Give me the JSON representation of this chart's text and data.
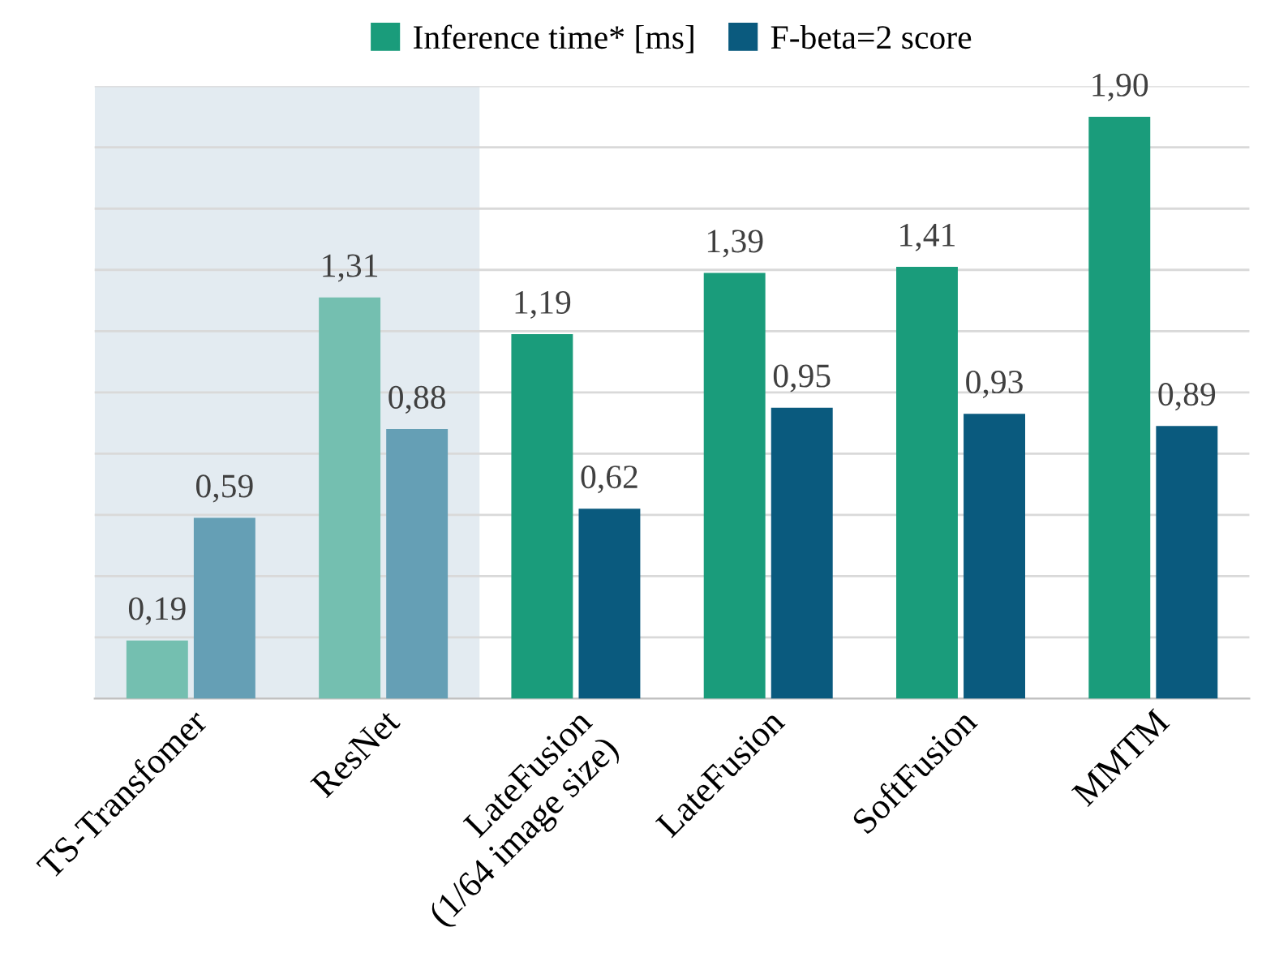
{
  "chart_data": {
    "type": "bar",
    "categories": [
      "TS-Transfomer",
      "ResNet",
      "LateFusion\n(1/64 image size)",
      "LateFusion",
      "SoftFusion",
      "MMTM"
    ],
    "series": [
      {
        "name": "Inference time* [ms]",
        "color": "#1a9c7b",
        "colors": [
          "#74bfb0",
          "#74bfb0",
          "#1a9c7b",
          "#1a9c7b",
          "#1a9c7b",
          "#1a9c7b"
        ],
        "values": [
          0.19,
          1.31,
          1.19,
          1.39,
          1.41,
          1.9
        ],
        "value_labels": [
          "0,19",
          "1,31",
          "1,19",
          "1,39",
          "1,41",
          "1,90"
        ]
      },
      {
        "name": "F-beta=2 score",
        "color": "#0a5a7e",
        "colors": [
          "#659fb5",
          "#659fb5",
          "#0a5a7e",
          "#0a5a7e",
          "#0a5a7e",
          "#0a5a7e"
        ],
        "values": [
          0.59,
          0.88,
          0.62,
          0.95,
          0.93,
          0.89
        ],
        "value_labels": [
          "0,59",
          "0,88",
          "0,62",
          "0,95",
          "0,93",
          "0,89"
        ]
      }
    ],
    "ylim": [
      0,
      2
    ],
    "yticks": [
      {
        "value": 0,
        "label": null
      },
      {
        "value": 0.2,
        "label": null
      },
      {
        "value": 0.4,
        "label": null
      },
      {
        "value": 0.6,
        "label": null
      },
      {
        "value": 0.8,
        "label": null
      },
      {
        "value": 1.0,
        "label": null
      },
      {
        "value": 1.2,
        "label": null
      },
      {
        "value": 1.4,
        "label": null
      },
      {
        "value": 1.6,
        "label": null
      },
      {
        "value": 1.8,
        "label": null
      },
      {
        "value": 2.0,
        "label": null
      }
    ],
    "tick_labels": "x",
    "grid": "y",
    "legend": "top",
    "bands": [
      {
        "axis": "x",
        "from": "TS-Transfomer",
        "to": "ResNet",
        "label": null,
        "color": "#e3ebf1"
      }
    ]
  }
}
